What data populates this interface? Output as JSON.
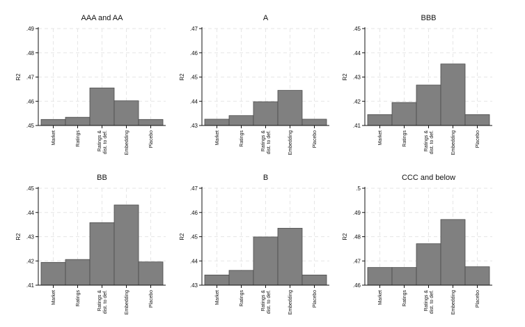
{
  "chart_data": [
    {
      "type": "bar",
      "title": "AAA and AA",
      "ylabel": "R2",
      "categories": [
        "Market",
        "Ratings",
        "Ratings &\ndist. to def.",
        "Embedding",
        "Placebo"
      ],
      "values": [
        0.4525,
        0.4534,
        0.4655,
        0.4602,
        0.4525
      ],
      "ylim": [
        0.45,
        0.49
      ],
      "yticks": [
        ".45",
        ".46",
        ".47",
        ".48",
        ".49"
      ],
      "bar_color": "#808080",
      "grid": true
    },
    {
      "type": "bar",
      "title": "A",
      "ylabel": "R2",
      "categories": [
        "Market",
        "Ratings",
        "Ratings &\ndist. to def.",
        "Embedding",
        "Placebo"
      ],
      "values": [
        0.4326,
        0.4341,
        0.4398,
        0.4445,
        0.4326
      ],
      "ylim": [
        0.43,
        0.47
      ],
      "yticks": [
        ".43",
        ".44",
        ".45",
        ".46",
        ".47"
      ],
      "bar_color": "#808080",
      "grid": true
    },
    {
      "type": "bar",
      "title": "BBB",
      "ylabel": "R2",
      "categories": [
        "Market",
        "Ratings",
        "Ratings &\ndist. to def.",
        "Embedding",
        "Placebo"
      ],
      "values": [
        0.4145,
        0.4195,
        0.4267,
        0.4354,
        0.4145
      ],
      "ylim": [
        0.41,
        0.45
      ],
      "yticks": [
        ".41",
        ".42",
        ".43",
        ".44",
        ".45"
      ],
      "bar_color": "#808080",
      "grid": true
    },
    {
      "type": "bar",
      "title": "BB",
      "ylabel": "R2",
      "categories": [
        "Market",
        "Ratings",
        "Ratings &\ndist. to def.",
        "Embedding",
        "Placebo"
      ],
      "values": [
        0.4194,
        0.4206,
        0.4358,
        0.4431,
        0.4196
      ],
      "ylim": [
        0.41,
        0.45
      ],
      "yticks": [
        ".41",
        ".42",
        ".43",
        ".44",
        ".45"
      ],
      "bar_color": "#808080",
      "grid": true
    },
    {
      "type": "bar",
      "title": "B",
      "ylabel": "R2",
      "categories": [
        "Market",
        "Ratings",
        "Ratings &\ndist. to def.",
        "Embedding",
        "Placebo"
      ],
      "values": [
        0.4342,
        0.4361,
        0.4499,
        0.4535,
        0.4342
      ],
      "ylim": [
        0.43,
        0.47
      ],
      "yticks": [
        ".43",
        ".44",
        ".45",
        ".46",
        ".47"
      ],
      "bar_color": "#808080",
      "grid": true
    },
    {
      "type": "bar",
      "title": "CCC and below",
      "ylabel": "R2",
      "categories": [
        "Market",
        "Ratings",
        "Ratings &\ndist. to def.",
        "Embedding",
        "Placebo"
      ],
      "values": [
        0.4673,
        0.4673,
        0.4771,
        0.4871,
        0.4676
      ],
      "ylim": [
        0.46,
        0.5
      ],
      "yticks": [
        ".46",
        ".47",
        ".48",
        ".49",
        ".5"
      ],
      "bar_color": "#808080",
      "grid": true
    }
  ]
}
